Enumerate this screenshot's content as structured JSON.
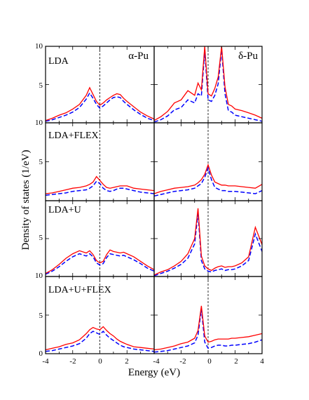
{
  "figure": {
    "ylabel": "Density of states (1/eV)",
    "xlabel": "Energy (eV)",
    "corner_labels": [
      "α-Pu",
      "δ-Pu"
    ],
    "row_labels": [
      "LDA",
      "LDA+FLEX",
      "LDA+U",
      "LDA+U+FLEX"
    ],
    "x_tick_labels_left": [
      "-4",
      "-2",
      "0",
      "2"
    ],
    "x_tick_labels_right": [
      "-4",
      "-2",
      "0",
      "2",
      "4"
    ],
    "y_tick_labels_top": [
      "10",
      "5",
      "10"
    ],
    "y_tick_labels_mid": [
      "5"
    ],
    "y_tick_labels_third": [
      "5",
      "10"
    ],
    "y_tick_labels_bottom": [
      "5",
      "0"
    ]
  },
  "chart_data": {
    "type": "line",
    "layout": "4 rows x 2 columns of panels sharing axes",
    "xlabel": "Energy (eV)",
    "ylabel": "Density of states (1/eV)",
    "xlim": [
      -4,
      4
    ],
    "ylim": [
      0,
      10
    ],
    "fermi_level_dashed_line_x": 0,
    "series_colors": {
      "red_solid": "#ff0000",
      "blue_dashed": "#0000ff"
    },
    "x": [
      -4,
      -3.5,
      -3,
      -2.5,
      -2,
      -1.5,
      -1,
      -0.75,
      -0.5,
      -0.25,
      0,
      0.25,
      0.5,
      0.75,
      1,
      1.25,
      1.5,
      1.75,
      2,
      2.5,
      3,
      3.5,
      4
    ],
    "panels": [
      {
        "row": "LDA",
        "column": "α-Pu",
        "red": [
          0.3,
          0.6,
          1.0,
          1.3,
          1.8,
          2.4,
          3.6,
          4.6,
          3.7,
          2.8,
          2.3,
          2.6,
          3.0,
          3.3,
          3.6,
          3.8,
          3.7,
          3.2,
          2.8,
          2.1,
          1.4,
          0.9,
          0.5
        ],
        "blue": [
          0.2,
          0.4,
          0.7,
          1.0,
          1.4,
          2.0,
          3.1,
          3.9,
          3.2,
          2.4,
          1.9,
          2.2,
          2.6,
          3.0,
          3.3,
          3.4,
          3.3,
          2.8,
          2.4,
          1.7,
          1.1,
          0.6,
          0.3
        ]
      },
      {
        "row": "LDA",
        "column": "δ-Pu",
        "red": [
          0.3,
          0.8,
          1.5,
          2.6,
          3.0,
          4.2,
          3.6,
          5.2,
          4.3,
          10.0,
          3.8,
          3.5,
          4.5,
          6.0,
          10.0,
          4.7,
          2.4,
          2.2,
          1.8,
          1.6,
          1.3,
          1.0,
          0.6
        ],
        "blue": [
          0.1,
          0.4,
          0.9,
          1.7,
          2.0,
          3.0,
          2.6,
          3.8,
          3.5,
          9.4,
          3.0,
          2.8,
          3.6,
          5.1,
          9.6,
          3.8,
          1.6,
          1.4,
          1.0,
          0.8,
          0.6,
          0.4,
          0.2
        ]
      },
      {
        "row": "LDA+FLEX",
        "column": "α-Pu",
        "red": [
          0.9,
          1.0,
          1.2,
          1.4,
          1.6,
          1.7,
          1.9,
          2.1,
          2.4,
          3.1,
          2.6,
          2.1,
          1.7,
          1.6,
          1.7,
          1.8,
          1.9,
          1.9,
          1.9,
          1.6,
          1.5,
          1.4,
          1.3
        ],
        "blue": [
          0.7,
          0.8,
          0.9,
          1.0,
          1.2,
          1.3,
          1.4,
          1.6,
          1.9,
          2.5,
          2.2,
          1.6,
          1.3,
          1.2,
          1.3,
          1.5,
          1.6,
          1.6,
          1.5,
          1.3,
          1.1,
          1.0,
          0.9
        ]
      },
      {
        "row": "LDA+FLEX",
        "column": "δ-Pu",
        "red": [
          0.9,
          1.2,
          1.4,
          1.6,
          1.7,
          1.8,
          2.0,
          2.3,
          2.7,
          3.4,
          4.6,
          3.3,
          2.4,
          2.2,
          2.0,
          2.0,
          1.9,
          1.9,
          1.9,
          1.8,
          1.7,
          1.6,
          2.1
        ],
        "blue": [
          0.6,
          0.8,
          1.0,
          1.2,
          1.3,
          1.4,
          1.6,
          1.9,
          2.2,
          3.0,
          4.2,
          2.7,
          1.7,
          1.5,
          1.3,
          1.3,
          1.2,
          1.2,
          1.2,
          1.1,
          1.0,
          0.9,
          1.3
        ]
      },
      {
        "row": "LDA+U",
        "column": "α-Pu",
        "red": [
          0.4,
          0.9,
          1.6,
          2.4,
          3.0,
          3.4,
          3.1,
          3.4,
          2.9,
          2.1,
          1.8,
          2.0,
          2.9,
          3.5,
          3.3,
          3.2,
          3.1,
          3.2,
          3.0,
          2.6,
          2.0,
          1.4,
          0.9
        ],
        "blue": [
          0.3,
          0.7,
          1.3,
          2.0,
          2.6,
          3.0,
          2.7,
          3.0,
          2.6,
          1.8,
          1.5,
          1.7,
          2.5,
          3.0,
          2.9,
          2.8,
          2.7,
          2.8,
          2.6,
          2.2,
          1.7,
          1.1,
          0.7
        ]
      },
      {
        "row": "LDA+U",
        "column": "δ-Pu",
        "red": [
          0.2,
          0.6,
          0.9,
          1.4,
          2.0,
          3.0,
          5.0,
          9.0,
          2.7,
          1.4,
          1.0,
          0.8,
          1.1,
          1.3,
          1.4,
          1.2,
          1.3,
          1.3,
          1.4,
          1.8,
          2.6,
          6.5,
          4.2
        ],
        "blue": [
          0.1,
          0.4,
          0.7,
          1.1,
          1.6,
          2.4,
          4.3,
          8.4,
          2.1,
          1.0,
          0.7,
          0.6,
          0.8,
          0.9,
          1.0,
          0.8,
          0.9,
          0.9,
          1.0,
          1.4,
          2.1,
          5.6,
          3.3
        ]
      },
      {
        "row": "LDA+U+FLEX",
        "column": "α-Pu",
        "red": [
          0.5,
          0.7,
          0.9,
          1.2,
          1.4,
          1.8,
          2.6,
          3.1,
          3.4,
          3.2,
          3.1,
          3.5,
          3.0,
          2.6,
          2.3,
          1.9,
          1.6,
          1.4,
          1.2,
          0.9,
          0.8,
          0.7,
          0.6
        ],
        "blue": [
          0.3,
          0.4,
          0.6,
          0.8,
          1.0,
          1.3,
          2.0,
          2.6,
          2.9,
          2.7,
          2.5,
          2.9,
          2.4,
          2.0,
          1.7,
          1.4,
          1.1,
          0.9,
          0.8,
          0.6,
          0.5,
          0.4,
          0.3
        ]
      },
      {
        "row": "LDA+U+FLEX",
        "column": "δ-Pu",
        "red": [
          0.5,
          0.6,
          0.8,
          1.0,
          1.3,
          1.5,
          2.0,
          3.0,
          6.2,
          2.3,
          1.5,
          1.6,
          1.8,
          1.9,
          1.9,
          1.9,
          1.9,
          2.0,
          2.0,
          2.1,
          2.2,
          2.4,
          2.6
        ],
        "blue": [
          0.2,
          0.3,
          0.4,
          0.6,
          0.8,
          1.0,
          1.4,
          2.4,
          5.8,
          1.5,
          0.7,
          0.8,
          1.0,
          1.1,
          1.1,
          1.0,
          1.0,
          1.1,
          1.1,
          1.2,
          1.3,
          1.5,
          1.8
        ]
      }
    ]
  }
}
